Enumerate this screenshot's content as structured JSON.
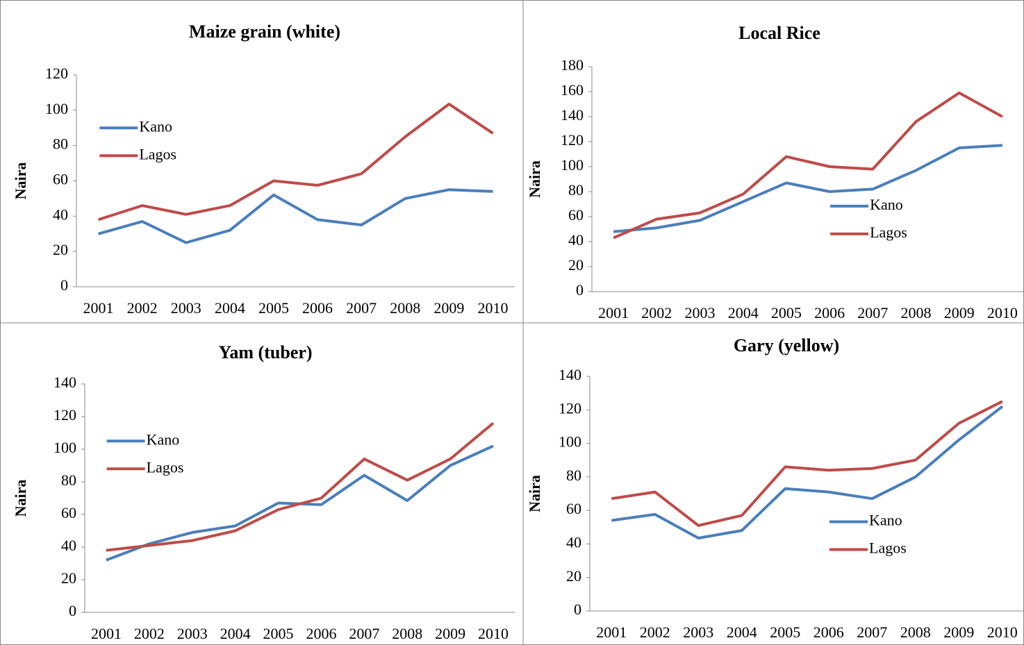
{
  "chart_data": [
    {
      "type": "line",
      "title": "Maize grain (white)",
      "y_label": "Naira",
      "categories": [
        "2001",
        "2002",
        "2003",
        "2004",
        "2005",
        "2006",
        "2007",
        "2008",
        "2009",
        "2010"
      ],
      "series": [
        {
          "name": "Kano",
          "color": "#4a7ebb",
          "values": [
            30,
            37,
            25,
            32,
            52,
            38,
            35,
            50,
            55,
            54
          ]
        },
        {
          "name": "Lagos",
          "color": "#be4b48",
          "values": [
            38,
            46,
            41,
            46,
            60,
            57.5,
            64,
            85,
            103.5,
            87
          ]
        }
      ],
      "ylim": [
        0,
        120
      ],
      "yticks": [
        0,
        20,
        40,
        60,
        80,
        100,
        120
      ],
      "grid": false,
      "legend": "upper left"
    },
    {
      "type": "line",
      "title": "Local Rice",
      "y_label": "Naira",
      "categories": [
        "2001",
        "2002",
        "2003",
        "2004",
        "2005",
        "2006",
        "2007",
        "2008",
        "2009",
        "2010"
      ],
      "series": [
        {
          "name": "Kano",
          "color": "#4a7ebb",
          "values": [
            48,
            51,
            57,
            72,
            87,
            80,
            82,
            97,
            115,
            117
          ]
        },
        {
          "name": "Lagos",
          "color": "#be4b48",
          "values": [
            43,
            58,
            63,
            78,
            108,
            100,
            98,
            136,
            159,
            140
          ]
        }
      ],
      "ylim": [
        0,
        180
      ],
      "yticks": [
        0,
        20,
        40,
        60,
        80,
        100,
        120,
        140,
        160,
        180
      ],
      "grid": false,
      "legend": "lower right"
    },
    {
      "type": "line",
      "title": "Yam (tuber)",
      "y_label": "Naira",
      "categories": [
        "2001",
        "2002",
        "2003",
        "2004",
        "2005",
        "2006",
        "2007",
        "2008",
        "2009",
        "2010"
      ],
      "series": [
        {
          "name": "Kano",
          "color": "#4a7ebb",
          "values": [
            32,
            42,
            49,
            53,
            67,
            66,
            84,
            68.5,
            90,
            102
          ]
        },
        {
          "name": "Lagos",
          "color": "#be4b48",
          "values": [
            38,
            41,
            44,
            50,
            63,
            70,
            94,
            81,
            94,
            116
          ]
        }
      ],
      "ylim": [
        0,
        140
      ],
      "yticks": [
        0,
        20,
        40,
        60,
        80,
        100,
        120,
        140
      ],
      "grid": false,
      "legend": "upper left"
    },
    {
      "type": "line",
      "title": "Gary (yellow)",
      "y_label": "Naira",
      "categories": [
        "2001",
        "2002",
        "2003",
        "2004",
        "2005",
        "2006",
        "2007",
        "2008",
        "2009",
        "2010"
      ],
      "series": [
        {
          "name": "Kano",
          "color": "#4a7ebb",
          "values": [
            54,
            57.6,
            43.5,
            48,
            73,
            71,
            67,
            80,
            102,
            122
          ]
        },
        {
          "name": "Lagos",
          "color": "#be4b48",
          "values": [
            67,
            71,
            51,
            57,
            86,
            84,
            85,
            90,
            112,
            125
          ]
        }
      ],
      "ylim": [
        0,
        140
      ],
      "yticks": [
        0,
        20,
        40,
        60,
        80,
        100,
        120,
        140
      ],
      "grid": false,
      "legend": "lower right"
    }
  ]
}
